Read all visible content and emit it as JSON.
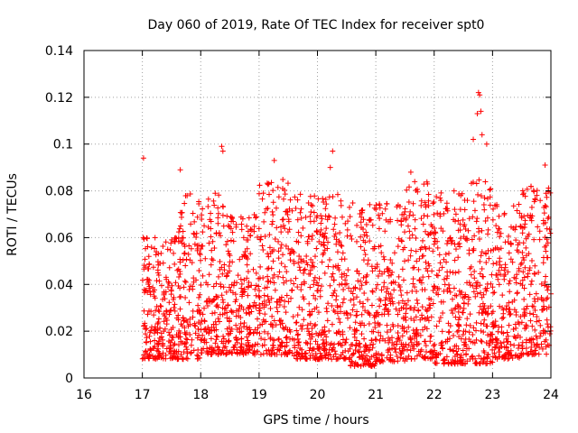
{
  "chart_data": {
    "type": "scatter",
    "title": "Day 060 of 2019, Rate Of TEC Index for receiver spt0",
    "xlabel": "GPS time / hours",
    "ylabel": "ROTI / TECUs",
    "xlim": [
      16,
      24
    ],
    "ylim": [
      0,
      0.14
    ],
    "xticks": [
      "16",
      "17",
      "18",
      "19",
      "20",
      "21",
      "22",
      "23",
      "24"
    ],
    "yticks": [
      "0",
      "0.02",
      "0.04",
      "0.06",
      "0.08",
      "0.1",
      "0.12",
      "0.14"
    ],
    "grid": true,
    "marker": "+",
    "series_color": "#ff0000",
    "data_description": "dense scatter of ROTI values between 17 and 24 h, mostly 0.005 to 0.085 TECU",
    "notable_points": [
      {
        "x": 17.02,
        "y": 0.094
      },
      {
        "x": 18.36,
        "y": 0.099
      },
      {
        "x": 18.38,
        "y": 0.097
      },
      {
        "x": 20.26,
        "y": 0.097
      },
      {
        "x": 20.22,
        "y": 0.09
      },
      {
        "x": 19.26,
        "y": 0.093
      },
      {
        "x": 22.76,
        "y": 0.122
      },
      {
        "x": 22.78,
        "y": 0.121
      },
      {
        "x": 22.8,
        "y": 0.114
      },
      {
        "x": 22.74,
        "y": 0.113
      },
      {
        "x": 22.82,
        "y": 0.104
      },
      {
        "x": 22.67,
        "y": 0.102
      },
      {
        "x": 22.9,
        "y": 0.1
      },
      {
        "x": 23.9,
        "y": 0.091
      },
      {
        "x": 17.65,
        "y": 0.089
      },
      {
        "x": 21.6,
        "y": 0.088
      }
    ],
    "density_profile": [
      {
        "x0": 17.0,
        "x1": 17.25,
        "lo": 0.008,
        "hi": 0.065
      },
      {
        "x0": 17.25,
        "x1": 17.6,
        "lo": 0.008,
        "hi": 0.06
      },
      {
        "x0": 17.6,
        "x1": 18.0,
        "lo": 0.008,
        "hi": 0.08
      },
      {
        "x0": 18.0,
        "x1": 18.5,
        "lo": 0.01,
        "hi": 0.08
      },
      {
        "x0": 18.5,
        "x1": 19.0,
        "lo": 0.01,
        "hi": 0.07
      },
      {
        "x0": 19.0,
        "x1": 19.5,
        "lo": 0.01,
        "hi": 0.085
      },
      {
        "x0": 19.5,
        "x1": 20.0,
        "lo": 0.008,
        "hi": 0.08
      },
      {
        "x0": 20.0,
        "x1": 20.5,
        "lo": 0.008,
        "hi": 0.08
      },
      {
        "x0": 20.5,
        "x1": 21.0,
        "lo": 0.005,
        "hi": 0.075
      },
      {
        "x0": 21.0,
        "x1": 21.5,
        "lo": 0.007,
        "hi": 0.075
      },
      {
        "x0": 21.5,
        "x1": 22.0,
        "lo": 0.008,
        "hi": 0.085
      },
      {
        "x0": 22.0,
        "x1": 22.5,
        "lo": 0.006,
        "hi": 0.08
      },
      {
        "x0": 22.5,
        "x1": 23.0,
        "lo": 0.006,
        "hi": 0.085
      },
      {
        "x0": 23.0,
        "x1": 23.5,
        "lo": 0.008,
        "hi": 0.075
      },
      {
        "x0": 23.5,
        "x1": 24.0,
        "lo": 0.01,
        "hi": 0.082
      }
    ]
  }
}
